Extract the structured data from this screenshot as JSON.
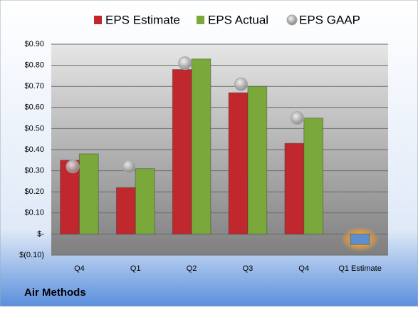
{
  "chart_data": {
    "type": "bar",
    "footer": "Air Methods",
    "categories": [
      "Q4",
      "Q1",
      "Q2",
      "Q3",
      "Q4",
      "Q1 Estimate"
    ],
    "series": [
      {
        "name": "EPS Estimate",
        "color": "#c0282d",
        "colors": [
          "#c0282d",
          "#c0282d",
          "#c0282d",
          "#c0282d",
          "#c0282d",
          "#5b8fd0"
        ],
        "values": [
          0.35,
          0.22,
          0.78,
          0.67,
          0.43,
          -0.05
        ]
      },
      {
        "name": "EPS Actual",
        "color": "#7aa83a",
        "values": [
          0.38,
          0.31,
          0.83,
          0.7,
          0.55,
          null
        ]
      },
      {
        "name": "EPS GAAP",
        "color": "#a6a6a6",
        "marker": "circle",
        "values": [
          0.32,
          0.32,
          0.81,
          0.71,
          0.55,
          null
        ]
      }
    ],
    "ylim": [
      -0.1,
      0.9
    ],
    "yticks": [
      {
        "value": -0.1,
        "label": "$(0.10)"
      },
      {
        "value": 0,
        "label": "$-"
      },
      {
        "value": 0.1,
        "label": "$0.10"
      },
      {
        "value": 0.2,
        "label": "$0.20"
      },
      {
        "value": 0.3,
        "label": "$0.30"
      },
      {
        "value": 0.4,
        "label": "$0.40"
      },
      {
        "value": 0.5,
        "label": "$0.50"
      },
      {
        "value": 0.6,
        "label": "$0.60"
      },
      {
        "value": 0.7,
        "label": "$0.70"
      },
      {
        "value": 0.8,
        "label": "$0.80"
      },
      {
        "value": 0.9,
        "label": "$0.90"
      }
    ],
    "grid": true
  }
}
